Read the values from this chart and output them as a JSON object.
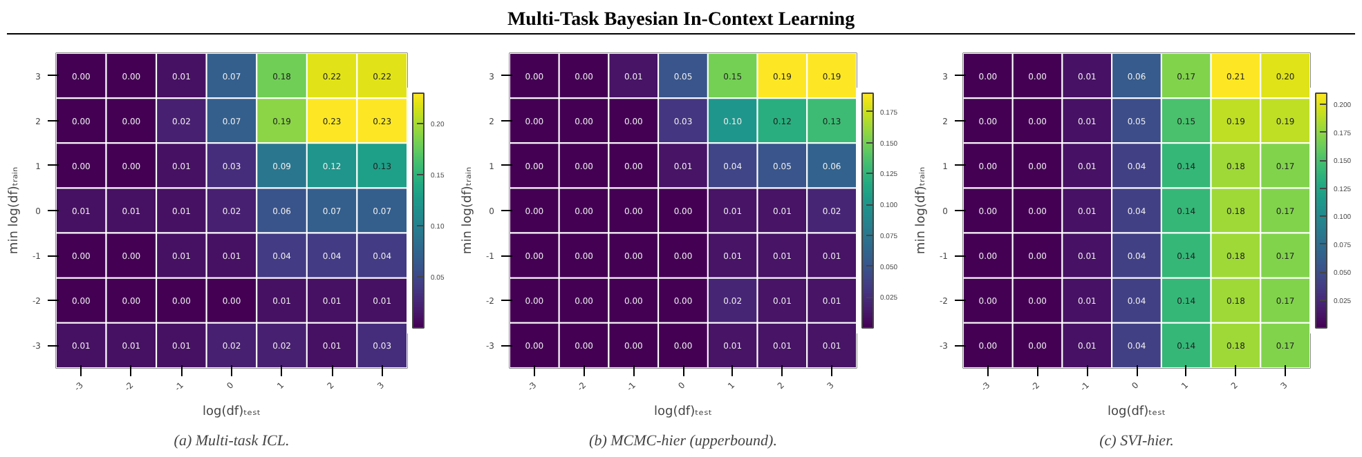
{
  "chart_data": [
    {
      "type": "heatmap",
      "xlabel": "log(df)ₜₑₛₜ",
      "ylabel": "min log(df)ₜᵣₐᵢₙ",
      "annotations": [
        "(a) Multi-task ICL."
      ],
      "categories": [
        "-3",
        "-2",
        "-1",
        "0",
        "1",
        "2",
        "3"
      ],
      "y_categories": [
        "3",
        "2",
        "1",
        "0",
        "-1",
        "-2",
        "-3"
      ],
      "cells": [
        [
          0.0,
          0.0,
          0.01,
          0.07,
          0.18,
          0.22,
          0.22
        ],
        [
          0.0,
          0.0,
          0.02,
          0.07,
          0.19,
          0.23,
          0.23
        ],
        [
          0.0,
          0.0,
          0.01,
          0.03,
          0.09,
          0.12,
          0.13
        ],
        [
          0.01,
          0.01,
          0.01,
          0.02,
          0.06,
          0.07,
          0.07
        ],
        [
          0.0,
          0.0,
          0.01,
          0.01,
          0.04,
          0.04,
          0.04
        ],
        [
          0.0,
          0.0,
          0.0,
          0.0,
          0.01,
          0.01,
          0.01
        ],
        [
          0.01,
          0.01,
          0.01,
          0.02,
          0.02,
          0.01,
          0.03
        ]
      ],
      "cell_labels": [
        [
          "0.00",
          "0.00",
          "0.01",
          "0.07",
          "0.18",
          "0.22",
          "0.22"
        ],
        [
          "0.00",
          "0.00",
          "0.02",
          "0.07",
          "0.19",
          "0.23",
          "0.23"
        ],
        [
          "0.00",
          "0.00",
          "0.01",
          "0.03",
          "0.09",
          "0.12",
          "0.13"
        ],
        [
          "0.01",
          "0.01",
          "0.01",
          "0.02",
          "0.06",
          "0.07",
          "0.07"
        ],
        [
          "0.00",
          "0.00",
          "0.01",
          "0.01",
          "0.04",
          "0.04",
          "0.04"
        ],
        [
          "0.00",
          "0.00",
          "0.00",
          "0.00",
          "0.01",
          "0.01",
          "0.01"
        ],
        [
          "0.01",
          "0.01",
          "0.01",
          "0.02",
          "0.02",
          "0.01",
          "0.03"
        ]
      ],
      "clim": [
        0.0,
        0.23
      ],
      "cticks": [
        {
          "value": 0.05,
          "label": "0.05"
        },
        {
          "value": 0.1,
          "label": "0.10"
        },
        {
          "value": 0.15,
          "label": "0.15"
        },
        {
          "value": 0.2,
          "label": "0.20"
        }
      ]
    },
    {
      "type": "heatmap",
      "title": "Multi-Task Bayesian In-Context Learning",
      "xlabel": "log(df)ₜₑₛₜ",
      "ylabel": "min log(df)ₜᵣₐᵢₙ",
      "annotations": [
        "(b) MCMC-hier (upperbound)."
      ],
      "categories": [
        "-3",
        "-2",
        "-1",
        "0",
        "1",
        "2",
        "3"
      ],
      "y_categories": [
        "3",
        "2",
        "1",
        "0",
        "-1",
        "-2",
        "-3"
      ],
      "cells": [
        [
          0.0,
          0.0,
          0.01,
          0.05,
          0.15,
          0.19,
          0.19
        ],
        [
          0.0,
          0.0,
          0.0,
          0.03,
          0.1,
          0.12,
          0.13
        ],
        [
          0.0,
          0.0,
          0.0,
          0.01,
          0.04,
          0.05,
          0.06
        ],
        [
          0.0,
          0.0,
          0.0,
          0.0,
          0.01,
          0.01,
          0.02
        ],
        [
          0.0,
          0.0,
          0.0,
          0.0,
          0.01,
          0.01,
          0.01
        ],
        [
          0.0,
          0.0,
          0.0,
          0.0,
          0.02,
          0.01,
          0.01
        ],
        [
          0.0,
          0.0,
          0.0,
          0.0,
          0.01,
          0.01,
          0.01
        ]
      ],
      "cell_labels": [
        [
          "0.00",
          "0.00",
          "0.01",
          "0.05",
          "0.15",
          "0.19",
          "0.19"
        ],
        [
          "0.00",
          "0.00",
          "0.00",
          "0.03",
          "0.10",
          "0.12",
          "0.13"
        ],
        [
          "0.00",
          "0.00",
          "0.00",
          "0.01",
          "0.04",
          "0.05",
          "0.06"
        ],
        [
          "0.00",
          "0.00",
          "0.00",
          "0.00",
          "0.01",
          "0.01",
          "0.02"
        ],
        [
          "0.00",
          "0.00",
          "0.00",
          "0.00",
          "0.01",
          "0.01",
          "0.01"
        ],
        [
          "0.00",
          "0.00",
          "0.00",
          "0.00",
          "0.02",
          "0.01",
          "0.01"
        ],
        [
          "0.00",
          "0.00",
          "0.00",
          "0.00",
          "0.01",
          "0.01",
          "0.01"
        ]
      ],
      "clim": [
        0.0,
        0.19
      ],
      "cticks": [
        {
          "value": 0.025,
          "label": "0.025"
        },
        {
          "value": 0.05,
          "label": "0.050"
        },
        {
          "value": 0.075,
          "label": "0.075"
        },
        {
          "value": 0.1,
          "label": "0.100"
        },
        {
          "value": 0.125,
          "label": "0.125"
        },
        {
          "value": 0.15,
          "label": "0.150"
        },
        {
          "value": 0.175,
          "label": "0.175"
        }
      ]
    },
    {
      "type": "heatmap",
      "xlabel": "log(df)ₜₑₛₜ",
      "ylabel": "min log(df)ₜᵣₐᵢₙ",
      "annotations": [
        "(c) SVI-hier."
      ],
      "categories": [
        "-3",
        "-2",
        "-1",
        "0",
        "1",
        "2",
        "3"
      ],
      "y_categories": [
        "3",
        "2",
        "1",
        "0",
        "-1",
        "-2",
        "-3"
      ],
      "cells": [
        [
          0.0,
          0.0,
          0.01,
          0.06,
          0.17,
          0.21,
          0.2
        ],
        [
          0.0,
          0.0,
          0.01,
          0.05,
          0.15,
          0.19,
          0.19
        ],
        [
          0.0,
          0.0,
          0.01,
          0.04,
          0.14,
          0.18,
          0.17
        ],
        [
          0.0,
          0.0,
          0.01,
          0.04,
          0.14,
          0.18,
          0.17
        ],
        [
          0.0,
          0.0,
          0.01,
          0.04,
          0.14,
          0.18,
          0.17
        ],
        [
          0.0,
          0.0,
          0.01,
          0.04,
          0.14,
          0.18,
          0.17
        ],
        [
          0.0,
          0.0,
          0.01,
          0.04,
          0.14,
          0.18,
          0.17
        ]
      ],
      "cell_labels": [
        [
          "0.00",
          "0.00",
          "0.01",
          "0.06",
          "0.17",
          "0.21",
          "0.20"
        ],
        [
          "0.00",
          "0.00",
          "0.01",
          "0.05",
          "0.15",
          "0.19",
          "0.19"
        ],
        [
          "0.00",
          "0.00",
          "0.01",
          "0.04",
          "0.14",
          "0.18",
          "0.17"
        ],
        [
          "0.00",
          "0.00",
          "0.01",
          "0.04",
          "0.14",
          "0.18",
          "0.17"
        ],
        [
          "0.00",
          "0.00",
          "0.01",
          "0.04",
          "0.14",
          "0.18",
          "0.17"
        ],
        [
          "0.00",
          "0.00",
          "0.01",
          "0.04",
          "0.14",
          "0.18",
          "0.17"
        ],
        [
          "0.00",
          "0.00",
          "0.01",
          "0.04",
          "0.14",
          "0.18",
          "0.17"
        ]
      ],
      "clim": [
        0.0,
        0.21
      ],
      "cticks": [
        {
          "value": 0.025,
          "label": "0.025"
        },
        {
          "value": 0.05,
          "label": "0.050"
        },
        {
          "value": 0.075,
          "label": "0.075"
        },
        {
          "value": 0.1,
          "label": "0.100"
        },
        {
          "value": 0.125,
          "label": "0.125"
        },
        {
          "value": 0.15,
          "label": "0.150"
        },
        {
          "value": 0.175,
          "label": "0.175"
        },
        {
          "value": 0.2,
          "label": "0.200"
        }
      ]
    }
  ]
}
